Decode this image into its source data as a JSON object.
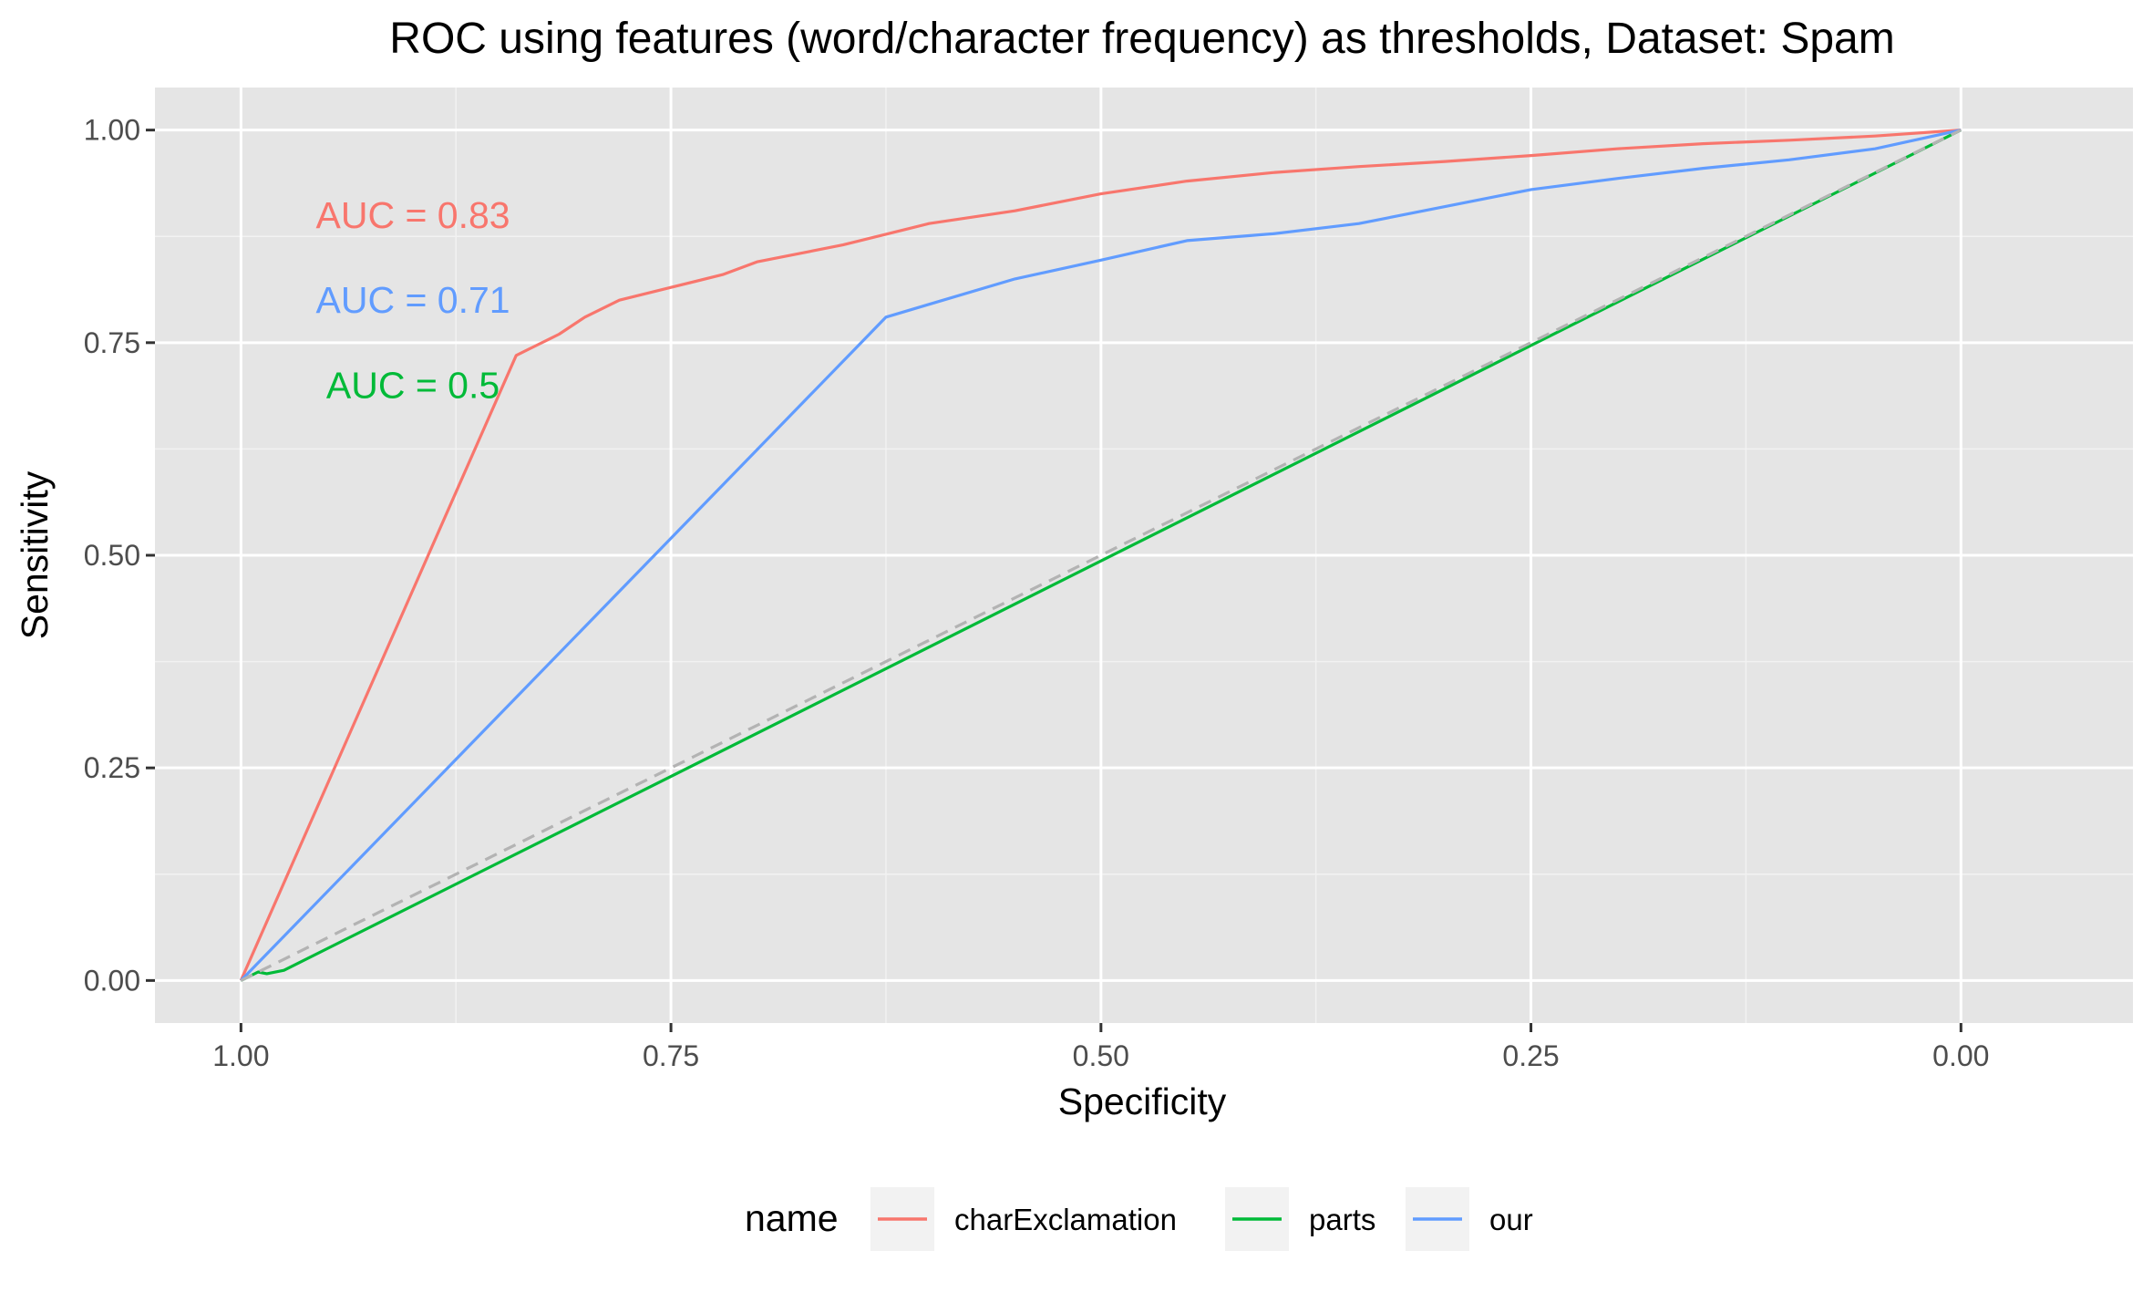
{
  "chart_data": {
    "type": "line",
    "title": "ROC using features (word/character frequency) as thresholds, Dataset: Spam",
    "xlabel": "Specificity",
    "ylabel": "Sensitivity",
    "xlim": [
      1.05,
      -0.1
    ],
    "ylim": [
      -0.05,
      1.05
    ],
    "x_reversed": true,
    "x_ticks": [
      "1.00",
      "0.75",
      "0.50",
      "0.25",
      "0.00"
    ],
    "y_ticks": [
      "0.00",
      "0.25",
      "0.50",
      "0.75",
      "1.00"
    ],
    "x_tick_values": [
      1.0,
      0.75,
      0.5,
      0.25,
      0.0
    ],
    "y_tick_values": [
      0.0,
      0.25,
      0.5,
      0.75,
      1.0
    ],
    "grid": true,
    "background": "#e5e5e5",
    "legend": {
      "title": "name",
      "position": "bottom"
    },
    "series": [
      {
        "name": "charExclamation",
        "color": "#f8766d",
        "x": [
          1.0,
          0.84,
          0.83,
          0.82,
          0.815,
          0.8,
          0.78,
          0.75,
          0.72,
          0.7,
          0.65,
          0.62,
          0.6,
          0.55,
          0.5,
          0.45,
          0.4,
          0.35,
          0.3,
          0.25,
          0.2,
          0.15,
          0.1,
          0.05,
          0.0
        ],
        "y": [
          0.0,
          0.735,
          0.745,
          0.755,
          0.76,
          0.78,
          0.8,
          0.815,
          0.83,
          0.845,
          0.865,
          0.88,
          0.89,
          0.905,
          0.925,
          0.94,
          0.95,
          0.957,
          0.963,
          0.97,
          0.978,
          0.984,
          0.988,
          0.993,
          1.0
        ]
      },
      {
        "name": "parts",
        "color": "#00ba38",
        "dashed": true,
        "x": [
          1.0,
          0.99,
          0.985,
          0.975,
          0.0
        ],
        "y": [
          0.0,
          0.01,
          0.008,
          0.012,
          1.0
        ]
      },
      {
        "name": "our",
        "color": "#619cff",
        "x": [
          1.0,
          0.625,
          0.6,
          0.55,
          0.5,
          0.45,
          0.4,
          0.35,
          0.3,
          0.25,
          0.2,
          0.15,
          0.1,
          0.05,
          0.0
        ],
        "y": [
          0.0,
          0.78,
          0.795,
          0.825,
          0.847,
          0.87,
          0.878,
          0.89,
          0.91,
          0.93,
          0.943,
          0.955,
          0.965,
          0.978,
          1.0
        ]
      }
    ],
    "reference_line": {
      "color": "#b3b3b3",
      "x": [
        1.0,
        0.0
      ],
      "y": [
        0.0,
        1.0
      ]
    },
    "annotations": [
      {
        "text": "AUC = 0.83",
        "color": "#f8766d",
        "x": 0.9,
        "y": 0.9
      },
      {
        "text": "AUC = 0.71",
        "color": "#619cff",
        "x": 0.9,
        "y": 0.8
      },
      {
        "text": "AUC = 0.5",
        "color": "#00ba38",
        "x": 0.9,
        "y": 0.7
      }
    ]
  }
}
